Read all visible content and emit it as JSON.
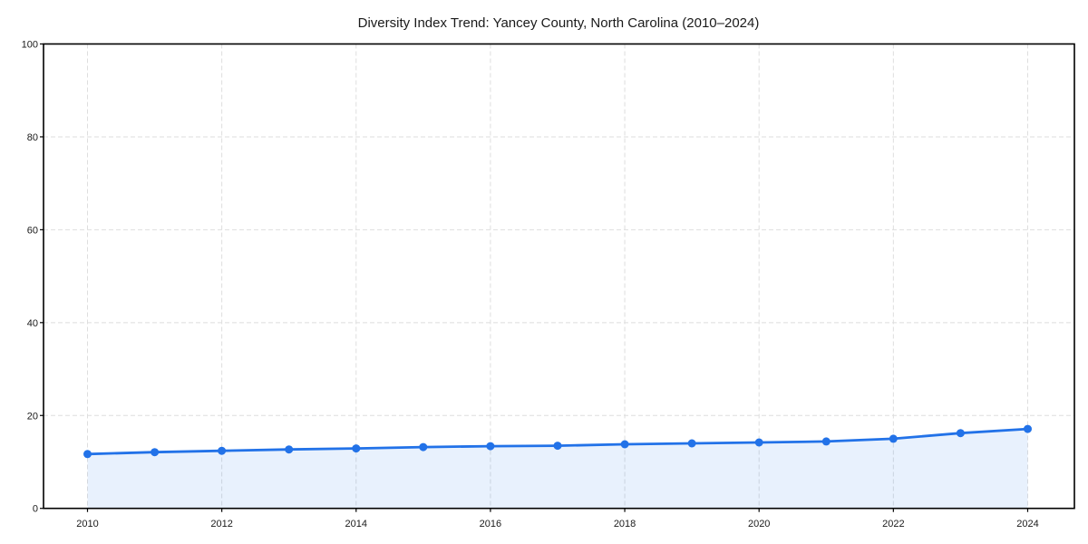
{
  "chart_data": {
    "type": "line",
    "title": "Diversity Index Trend: Yancey County, North Carolina (2010–2024)",
    "series_name": "Diversity Index",
    "x": [
      2010,
      2011,
      2012,
      2013,
      2014,
      2015,
      2016,
      2017,
      2018,
      2019,
      2020,
      2021,
      2022,
      2023,
      2024
    ],
    "values": [
      11.7,
      12.1,
      12.4,
      12.7,
      12.9,
      13.2,
      13.4,
      13.5,
      13.8,
      14.0,
      14.2,
      14.4,
      15.0,
      16.2,
      17.1
    ],
    "xlabel": "",
    "ylabel": "",
    "ylim": [
      0,
      100
    ],
    "yticks": [
      0,
      20,
      40,
      60,
      80,
      100
    ],
    "xticks": [
      2010,
      2012,
      2014,
      2016,
      2018,
      2020,
      2022,
      2024
    ],
    "grid": "dashed",
    "legend": "none",
    "area_fill": true,
    "markers": true,
    "colors": {
      "line": "#2272e8",
      "marker": "#2272e8",
      "fill": "rgba(34,114,232,0.10)",
      "grid": "#dedede",
      "spine": "#000000",
      "text": "#1a1a1a",
      "background": "#ffffff"
    }
  }
}
